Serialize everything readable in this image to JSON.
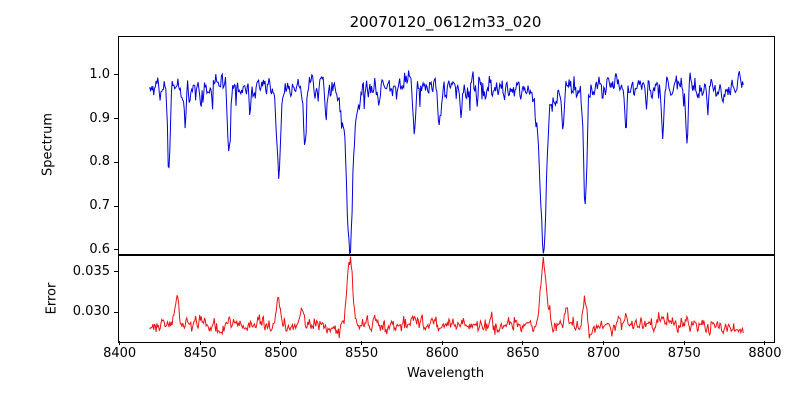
{
  "chart_data": {
    "type": "line",
    "title": "20070120_0612m33_020",
    "xlabel": "Wavelength",
    "x_lim": [
      8399,
      8805
    ],
    "x_data_range": [
      8418,
      8786
    ],
    "x_ticks": [
      {
        "v": 8400,
        "label": "8400"
      },
      {
        "v": 8450,
        "label": "8450"
      },
      {
        "v": 8500,
        "label": "8500"
      },
      {
        "v": 8550,
        "label": "8550"
      },
      {
        "v": 8600,
        "label": "8600"
      },
      {
        "v": 8650,
        "label": "8650"
      },
      {
        "v": 8700,
        "label": "8700"
      },
      {
        "v": 8750,
        "label": "8750"
      },
      {
        "v": 8800,
        "label": "8800"
      }
    ],
    "panels": [
      {
        "name": "spectrum",
        "ylabel": "Spectrum",
        "color": "#0000dd",
        "ylim": [
          0.593,
          1.089
        ],
        "y_ticks": [
          {
            "v": 1.0,
            "label": "1.0"
          },
          {
            "v": 0.9,
            "label": "0.9"
          },
          {
            "v": 0.8,
            "label": "0.8"
          },
          {
            "v": 0.7,
            "label": "0.7"
          },
          {
            "v": 0.6,
            "label": "0.6"
          }
        ],
        "continuum": 0.975,
        "noise_std": 0.012,
        "max_value": 1.055,
        "absorption_lines": [
          [
            8430,
            0.17,
            0.8
          ],
          [
            8440,
            0.09,
            0.6
          ],
          [
            8450,
            0.05,
            0.5
          ],
          [
            8467,
            0.15,
            0.9
          ],
          [
            8480,
            0.05,
            0.5
          ],
          [
            8498,
            0.2,
            1.3
          ],
          [
            8514,
            0.12,
            0.9
          ],
          [
            8527,
            0.05,
            0.5
          ],
          [
            8542,
            0.3,
            1.6
          ],
          [
            8542,
            0.1,
            4.5
          ],
          [
            8560,
            0.05,
            0.5
          ],
          [
            8582,
            0.1,
            0.8
          ],
          [
            8598,
            0.11,
            0.8
          ],
          [
            8611,
            0.06,
            0.6
          ],
          [
            8621,
            0.05,
            0.5
          ],
          [
            8648,
            0.05,
            0.5
          ],
          [
            8662,
            0.3,
            1.7
          ],
          [
            8662,
            0.08,
            4.5
          ],
          [
            8674,
            0.09,
            0.7
          ],
          [
            8688,
            0.26,
            1.0
          ],
          [
            8713,
            0.09,
            0.7
          ],
          [
            8726,
            0.05,
            0.5
          ],
          [
            8736,
            0.11,
            0.8
          ],
          [
            8751,
            0.12,
            0.7
          ],
          [
            8764,
            0.07,
            0.6
          ]
        ]
      },
      {
        "name": "error",
        "ylabel": "Error",
        "color": "#ee1111",
        "ylim": [
          0.0264,
          0.0371
        ],
        "y_ticks": [
          {
            "v": 0.035,
            "label": "0.035"
          },
          {
            "v": 0.03,
            "label": "0.030"
          }
        ],
        "baseline": 0.0285,
        "noise_std": 0.0004,
        "peaks": [
          [
            8435,
            0.0028,
            1.5
          ],
          [
            8467,
            0.0012,
            1.2
          ],
          [
            8498,
            0.0028,
            1.5
          ],
          [
            8513,
            0.0014,
            1.0
          ],
          [
            8542,
            0.008,
            1.8
          ],
          [
            8558,
            0.001,
            1.0
          ],
          [
            8582,
            0.0008,
            1.0
          ],
          [
            8605,
            0.0008,
            2.0
          ],
          [
            8662,
            0.0072,
            1.8
          ],
          [
            8676,
            0.0018,
            0.9
          ],
          [
            8688,
            0.0038,
            1.0
          ],
          [
            8713,
            0.0008,
            0.8
          ],
          [
            8736,
            0.001,
            0.8
          ],
          [
            8751,
            0.0016,
            0.8
          ]
        ]
      }
    ]
  }
}
